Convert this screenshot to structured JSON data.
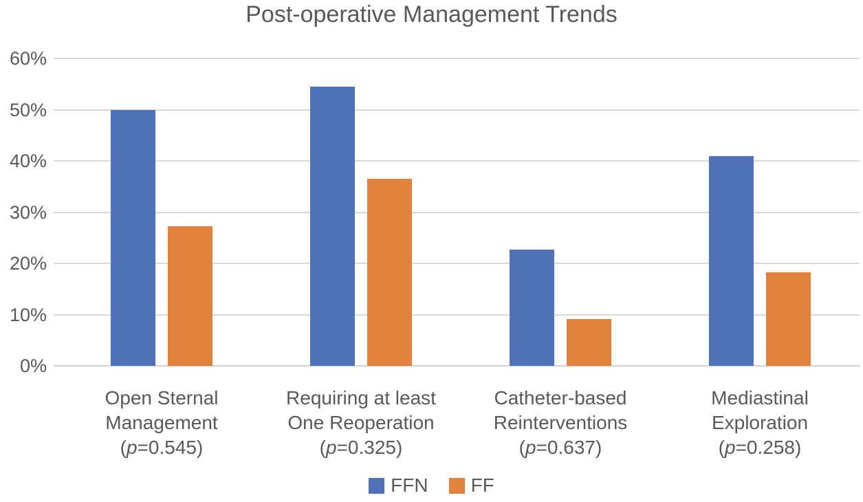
{
  "title": "Post-operative Management Trends",
  "colors": {
    "text": "#595959",
    "gridline": "#d9d9d9",
    "series_ffn": "#4F71B8",
    "series_ff": "#E0823E",
    "background": "#ffffff"
  },
  "chart_data": {
    "type": "bar",
    "title": "Post-operative Management Trends",
    "categories": [
      {
        "label_lines": [
          "Open Sternal",
          "Management"
        ],
        "p_value": "0.545"
      },
      {
        "label_lines": [
          "Requiring at least",
          "One Reoperation"
        ],
        "p_value": "0.325"
      },
      {
        "label_lines": [
          "Catheter-based",
          "Reinterventions"
        ],
        "p_value": "0.637"
      },
      {
        "label_lines": [
          "Mediastinal",
          "Exploration"
        ],
        "p_value": "0.258"
      }
    ],
    "series": [
      {
        "name": "FFN",
        "color": "#4F71B8",
        "values": [
          50.0,
          54.5,
          22.7,
          41.0
        ]
      },
      {
        "name": "FF",
        "color": "#E0823E",
        "values": [
          27.3,
          36.5,
          9.1,
          18.2
        ]
      }
    ],
    "y_axis": {
      "min": 0,
      "max": 60,
      "step": 10,
      "unit": "%",
      "tick_labels": [
        "0%",
        "10%",
        "20%",
        "30%",
        "40%",
        "50%",
        "60%"
      ]
    },
    "grid": true,
    "legend": {
      "position": "bottom",
      "entries": [
        "FFN",
        "FF"
      ]
    }
  }
}
